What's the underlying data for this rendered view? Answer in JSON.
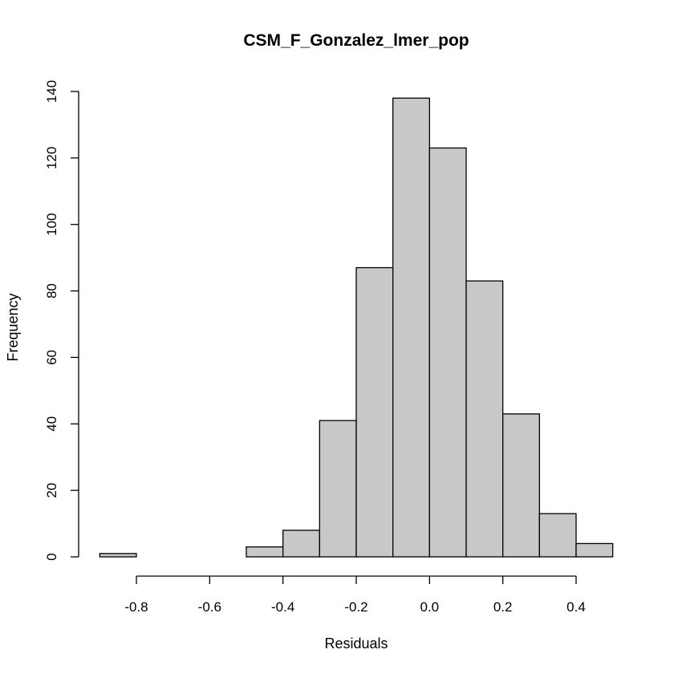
{
  "chart_data": {
    "type": "bar",
    "title": "CSM_F_Gonzalez_lmer_pop",
    "xlabel": "Residuals",
    "ylabel": "Frequency",
    "bin_edges": [
      -0.9,
      -0.8,
      -0.7,
      -0.6,
      -0.5,
      -0.4,
      -0.3,
      -0.2,
      -0.1,
      0.0,
      0.1,
      0.2,
      0.3,
      0.4,
      0.5
    ],
    "values": [
      1,
      0,
      0,
      0,
      3,
      8,
      41,
      87,
      138,
      123,
      83,
      43,
      13,
      4
    ],
    "xlim": [
      -0.9,
      0.5
    ],
    "ylim": [
      0,
      140
    ],
    "x_ticks": [
      -0.8,
      -0.6,
      -0.4,
      -0.2,
      0.0,
      0.2,
      0.4
    ],
    "x_tick_labels": [
      "-0.8",
      "-0.6",
      "-0.4",
      "-0.2",
      "0.0",
      "0.2",
      "0.4"
    ],
    "y_ticks": [
      0,
      20,
      40,
      60,
      80,
      100,
      120,
      140
    ],
    "y_tick_labels": [
      "0",
      "20",
      "40",
      "60",
      "80",
      "100",
      "120",
      "140"
    ],
    "bar_fill": "#c8c8c8",
    "bar_stroke": "#000000",
    "grid": false
  }
}
